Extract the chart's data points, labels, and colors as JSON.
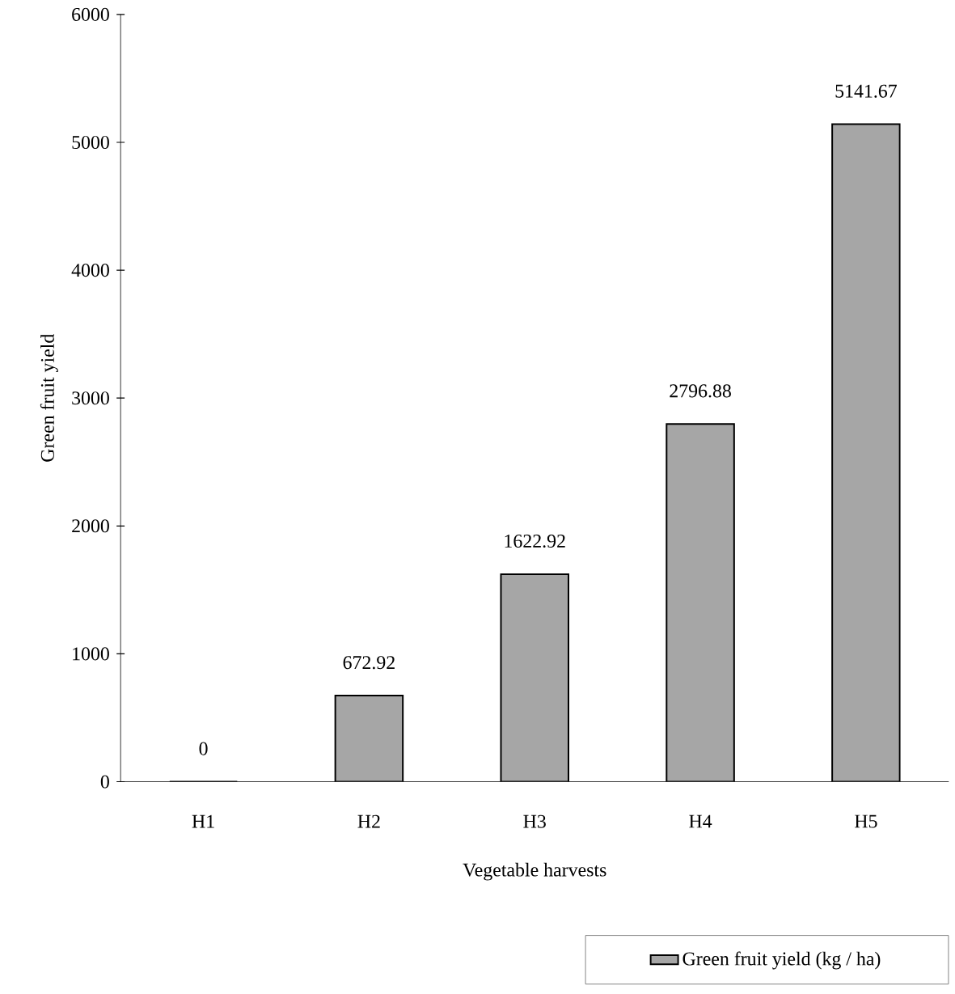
{
  "chart_data": {
    "type": "bar",
    "xlabel": "Vegetable harvests",
    "ylabel": "Green fruit yield",
    "categories": [
      "H1",
      "H2",
      "H3",
      "H4",
      "H5"
    ],
    "series": [
      {
        "name": "Green fruit yield (kg / ha)",
        "color": "#a6a6a6",
        "values": [
          0,
          672.92,
          1622.92,
          2796.88,
          5141.67
        ]
      }
    ],
    "ylim": [
      0,
      6000
    ],
    "yticks": [
      0,
      1000,
      2000,
      3000,
      4000,
      5000,
      6000
    ],
    "data_labels": true,
    "legend": "bottom right",
    "grid": false
  }
}
